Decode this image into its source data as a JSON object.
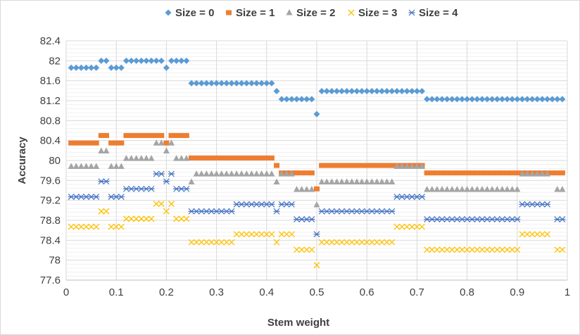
{
  "chart_data": {
    "type": "scatter",
    "title": "",
    "xlabel": "Stem weight",
    "ylabel": "Accuracy",
    "xlim": [
      0,
      1
    ],
    "ylim": [
      77.6,
      82.4
    ],
    "x_ticks": [
      "0",
      "0.1",
      "0.2",
      "0.3",
      "0.4",
      "0.5",
      "0.6",
      "0.7",
      "0.8",
      "0.9",
      "1"
    ],
    "y_ticks": [
      "77.6",
      "78",
      "78.4",
      "78.8",
      "79.2",
      "79.6",
      "80",
      "80.4",
      "80.8",
      "81.2",
      "81.6",
      "82",
      "82.4"
    ],
    "x_tick_values": [
      0,
      0.1,
      0.2,
      0.3,
      0.4,
      0.5,
      0.6,
      0.7,
      0.8,
      0.9,
      1
    ],
    "y_tick_values": [
      77.6,
      78,
      78.4,
      78.8,
      79.2,
      79.6,
      80,
      80.4,
      80.8,
      81.2,
      81.6,
      82,
      82.4
    ],
    "grid": true,
    "legend_position": "top",
    "series": [
      {
        "name": "Size = 0",
        "color": "#5b9bd5",
        "marker": "diamond",
        "segments": [
          {
            "from": 0.01,
            "to": 0.06,
            "y": 81.86
          },
          {
            "from": 0.07,
            "to": 0.08,
            "y": 82.0
          },
          {
            "from": 0.09,
            "to": 0.11,
            "y": 81.86
          },
          {
            "from": 0.12,
            "to": 0.19,
            "y": 82.0
          },
          {
            "from": 0.2,
            "to": 0.2,
            "y": 81.86
          },
          {
            "from": 0.21,
            "to": 0.24,
            "y": 82.0
          },
          {
            "from": 0.25,
            "to": 0.41,
            "y": 81.55
          },
          {
            "from": 0.42,
            "to": 0.42,
            "y": 81.39
          },
          {
            "from": 0.43,
            "to": 0.49,
            "y": 81.23
          },
          {
            "from": 0.5,
            "to": 0.5,
            "y": 80.93
          },
          {
            "from": 0.51,
            "to": 0.71,
            "y": 81.39
          },
          {
            "from": 0.72,
            "to": 0.99,
            "y": 81.23
          }
        ]
      },
      {
        "name": "Size = 1",
        "color": "#ed7d31",
        "marker": "square",
        "segments": [
          {
            "from": 0.01,
            "to": 0.06,
            "y": 80.35
          },
          {
            "from": 0.07,
            "to": 0.08,
            "y": 80.5
          },
          {
            "from": 0.09,
            "to": 0.11,
            "y": 80.35
          },
          {
            "from": 0.12,
            "to": 0.19,
            "y": 80.5
          },
          {
            "from": 0.2,
            "to": 0.2,
            "y": 80.35
          },
          {
            "from": 0.21,
            "to": 0.24,
            "y": 80.5
          },
          {
            "from": 0.25,
            "to": 0.41,
            "y": 80.05
          },
          {
            "from": 0.42,
            "to": 0.42,
            "y": 79.9
          },
          {
            "from": 0.43,
            "to": 0.49,
            "y": 79.75
          },
          {
            "from": 0.5,
            "to": 0.5,
            "y": 79.43
          },
          {
            "from": 0.51,
            "to": 0.71,
            "y": 79.9
          },
          {
            "from": 0.72,
            "to": 0.99,
            "y": 79.75
          }
        ]
      },
      {
        "name": "Size = 2",
        "color": "#a5a5a5",
        "marker": "triangle",
        "segments": [
          {
            "from": 0.01,
            "to": 0.06,
            "y": 79.88
          },
          {
            "from": 0.07,
            "to": 0.08,
            "y": 80.19
          },
          {
            "from": 0.09,
            "to": 0.11,
            "y": 79.88
          },
          {
            "from": 0.12,
            "to": 0.17,
            "y": 80.04
          },
          {
            "from": 0.18,
            "to": 0.19,
            "y": 80.35
          },
          {
            "from": 0.2,
            "to": 0.2,
            "y": 80.19
          },
          {
            "from": 0.21,
            "to": 0.21,
            "y": 80.35
          },
          {
            "from": 0.22,
            "to": 0.24,
            "y": 80.04
          },
          {
            "from": 0.25,
            "to": 0.25,
            "y": 79.57
          },
          {
            "from": 0.26,
            "to": 0.41,
            "y": 79.73
          },
          {
            "from": 0.42,
            "to": 0.42,
            "y": 79.57
          },
          {
            "from": 0.43,
            "to": 0.45,
            "y": 79.73
          },
          {
            "from": 0.46,
            "to": 0.49,
            "y": 79.42
          },
          {
            "from": 0.5,
            "to": 0.5,
            "y": 79.11
          },
          {
            "from": 0.51,
            "to": 0.65,
            "y": 79.57
          },
          {
            "from": 0.66,
            "to": 0.71,
            "y": 79.88
          },
          {
            "from": 0.72,
            "to": 0.9,
            "y": 79.42
          },
          {
            "from": 0.91,
            "to": 0.96,
            "y": 79.73
          },
          {
            "from": 0.98,
            "to": 0.99,
            "y": 79.42
          }
        ]
      },
      {
        "name": "Size = 3",
        "color": "#ffc000",
        "marker": "x",
        "segments": [
          {
            "from": 0.01,
            "to": 0.06,
            "y": 78.67
          },
          {
            "from": 0.07,
            "to": 0.08,
            "y": 78.98
          },
          {
            "from": 0.09,
            "to": 0.11,
            "y": 78.67
          },
          {
            "from": 0.12,
            "to": 0.17,
            "y": 78.83
          },
          {
            "from": 0.18,
            "to": 0.19,
            "y": 79.13
          },
          {
            "from": 0.2,
            "to": 0.2,
            "y": 78.98
          },
          {
            "from": 0.21,
            "to": 0.21,
            "y": 79.13
          },
          {
            "from": 0.22,
            "to": 0.24,
            "y": 78.83
          },
          {
            "from": 0.25,
            "to": 0.33,
            "y": 78.36
          },
          {
            "from": 0.34,
            "to": 0.41,
            "y": 78.52
          },
          {
            "from": 0.42,
            "to": 0.42,
            "y": 78.36
          },
          {
            "from": 0.43,
            "to": 0.45,
            "y": 78.52
          },
          {
            "from": 0.46,
            "to": 0.49,
            "y": 78.21
          },
          {
            "from": 0.5,
            "to": 0.5,
            "y": 77.9
          },
          {
            "from": 0.51,
            "to": 0.65,
            "y": 78.36
          },
          {
            "from": 0.66,
            "to": 0.71,
            "y": 78.67
          },
          {
            "from": 0.72,
            "to": 0.9,
            "y": 78.21
          },
          {
            "from": 0.91,
            "to": 0.96,
            "y": 78.52
          },
          {
            "from": 0.98,
            "to": 0.99,
            "y": 78.21
          }
        ]
      },
      {
        "name": "Size = 4",
        "color": "#4472c4",
        "marker": "star",
        "segments": [
          {
            "from": 0.01,
            "to": 0.06,
            "y": 79.27
          },
          {
            "from": 0.07,
            "to": 0.08,
            "y": 79.58
          },
          {
            "from": 0.09,
            "to": 0.11,
            "y": 79.27
          },
          {
            "from": 0.12,
            "to": 0.17,
            "y": 79.43
          },
          {
            "from": 0.18,
            "to": 0.19,
            "y": 79.73
          },
          {
            "from": 0.2,
            "to": 0.2,
            "y": 79.58
          },
          {
            "from": 0.21,
            "to": 0.21,
            "y": 79.73
          },
          {
            "from": 0.22,
            "to": 0.24,
            "y": 79.43
          },
          {
            "from": 0.25,
            "to": 0.33,
            "y": 78.98
          },
          {
            "from": 0.34,
            "to": 0.41,
            "y": 79.12
          },
          {
            "from": 0.42,
            "to": 0.42,
            "y": 78.98
          },
          {
            "from": 0.43,
            "to": 0.45,
            "y": 79.12
          },
          {
            "from": 0.46,
            "to": 0.49,
            "y": 78.82
          },
          {
            "from": 0.5,
            "to": 0.5,
            "y": 78.52
          },
          {
            "from": 0.51,
            "to": 0.65,
            "y": 78.98
          },
          {
            "from": 0.66,
            "to": 0.71,
            "y": 79.27
          },
          {
            "from": 0.72,
            "to": 0.9,
            "y": 78.82
          },
          {
            "from": 0.91,
            "to": 0.96,
            "y": 79.12
          },
          {
            "from": 0.98,
            "to": 0.99,
            "y": 78.82
          }
        ]
      }
    ]
  }
}
